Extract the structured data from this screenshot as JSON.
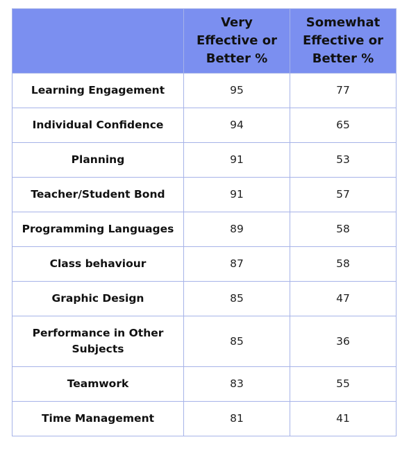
{
  "table": {
    "headers": [
      "",
      "Very Effective or Better %",
      "Somewhat Effective or Better %"
    ],
    "rows": [
      {
        "label": "Learning Engagement",
        "very": "95",
        "somewhat": "77"
      },
      {
        "label": "Individual Confidence",
        "very": "94",
        "somewhat": "65"
      },
      {
        "label": "Planning",
        "very": "91",
        "somewhat": "53"
      },
      {
        "label": "Teacher/Student Bond",
        "very": "91",
        "somewhat": "57"
      },
      {
        "label": "Programming Languages",
        "very": "89",
        "somewhat": "58"
      },
      {
        "label": "Class behaviour",
        "very": "87",
        "somewhat": "58"
      },
      {
        "label": "Graphic Design",
        "very": "85",
        "somewhat": "47"
      },
      {
        "label": "Performance in Other Subjects",
        "very": "85",
        "somewhat": "36"
      },
      {
        "label": "Teamwork",
        "very": "83",
        "somewhat": "55"
      },
      {
        "label": "Time Management",
        "very": "81",
        "somewhat": "41"
      }
    ]
  },
  "colors": {
    "header_bg": "#7b8ff0",
    "border": "#a6b3e8"
  }
}
